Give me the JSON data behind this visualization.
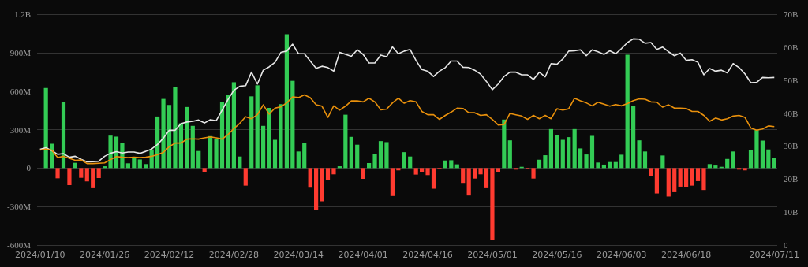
{
  "chart_data": {
    "type": "bar",
    "categories": [
      "2024/01/10",
      null,
      null,
      null,
      null,
      null,
      null,
      null,
      null,
      null,
      null,
      "2024/01/26",
      null,
      null,
      null,
      null,
      null,
      null,
      null,
      null,
      null,
      null,
      "2024/02/12",
      null,
      null,
      null,
      null,
      null,
      null,
      null,
      null,
      null,
      null,
      "2024/02/28",
      null,
      null,
      null,
      null,
      null,
      null,
      null,
      null,
      null,
      null,
      "2024/03/14",
      null,
      null,
      null,
      null,
      null,
      null,
      null,
      null,
      null,
      null,
      "2024/04/01",
      null,
      null,
      null,
      null,
      null,
      null,
      null,
      null,
      null,
      null,
      "2024/04/16",
      null,
      null,
      null,
      null,
      null,
      null,
      null,
      null,
      null,
      null,
      "2024/05/01",
      null,
      null,
      null,
      null,
      null,
      null,
      null,
      null,
      null,
      null,
      "2024/05/16",
      null,
      null,
      null,
      null,
      null,
      null,
      null,
      null,
      null,
      null,
      "2024/06/03",
      null,
      null,
      null,
      null,
      null,
      null,
      null,
      null,
      null,
      null,
      "2024/06/18",
      null,
      null,
      null,
      null,
      null,
      null,
      null,
      null,
      null,
      null,
      null,
      null,
      null,
      null,
      "2024/07/11"
    ],
    "series": [
      {
        "values": [
          null,
          624000000.0,
          190000000.0,
          -80000000.0,
          516000000.0,
          -133000000.0,
          41000000.0,
          -76000000.0,
          -104000000.0,
          -157000000.0,
          -78000000.0,
          14000000.0,
          253000000.0,
          245000000.0,
          196000000.0,
          37000000.0,
          80000000.0,
          67000000.0,
          31000000.0,
          145000000.0,
          402000000.0,
          539000000.0,
          492000000.0,
          629000000.0,
          349000000.0,
          476000000.0,
          329000000.0,
          133000000.0,
          -33000000.0,
          249000000.0,
          227000000.0,
          516000000.0,
          573000000.0,
          669000000.0,
          90000000.0,
          -137000000.0,
          559000000.0,
          645000000.0,
          329000000.0,
          469000000.0,
          220000000.0,
          498000000.0,
          1043000000.0,
          680000000.0,
          129000000.0,
          196000000.0,
          -153000000.0,
          -324000000.0,
          -259000000.0,
          -92000000.0,
          -49000000.0,
          14000000.0,
          416000000.0,
          243000000.0,
          182000000.0,
          -84000000.0,
          39000000.0,
          110000000.0,
          210000000.0,
          202000000.0,
          -218000000.0,
          -18000000.0,
          124000000.0,
          90000000.0,
          -51000000.0,
          -35000000.0,
          -55000000.0,
          -161000000.0,
          -4000000.0,
          59000000.0,
          61000000.0,
          29000000.0,
          -116000000.0,
          -214000000.0,
          -82000000.0,
          -49000000.0,
          -157000000.0,
          -563000000.0,
          -33000000.0,
          378000000.0,
          216000000.0,
          -12000000.0,
          10000000.0,
          -10000000.0,
          -82000000.0,
          65000000.0,
          100000000.0,
          304000000.0,
          255000000.0,
          220000000.0,
          241000000.0,
          304000000.0,
          153000000.0,
          106000000.0,
          251000000.0,
          43000000.0,
          27000000.0,
          47000000.0,
          47000000.0,
          104000000.0,
          884000000.0,
          486000000.0,
          216000000.0,
          129000000.0,
          -61000000.0,
          -198000000.0,
          98000000.0,
          -222000000.0,
          -188000000.0,
          -145000000.0,
          -151000000.0,
          -137000000.0,
          -102000000.0,
          -171000000.0,
          31000000.0,
          20000000.0,
          10000000.0,
          71000000.0,
          129000000.0,
          -12000000.0,
          -18000000.0,
          141000000.0,
          296000000.0,
          214000000.0,
          145000000.0,
          78000000.0
        ],
        "colors": [
          null,
          "#33cc55",
          "#33cc55",
          "#ff3b30",
          "#33cc55",
          "#ff3b30",
          "#33cc55",
          "#ff3b30",
          "#ff3b30",
          "#ff3b30",
          "#ff3b30",
          "#33cc55",
          "#33cc55",
          "#33cc55",
          "#33cc55",
          "#33cc55",
          "#33cc55",
          "#33cc55",
          "#33cc55",
          "#33cc55",
          "#33cc55",
          "#33cc55",
          "#33cc55",
          "#33cc55",
          "#33cc55",
          "#33cc55",
          "#33cc55",
          "#33cc55",
          "#ff3b30",
          "#33cc55",
          "#33cc55",
          "#33cc55",
          "#33cc55",
          "#33cc55",
          "#33cc55",
          "#ff3b30",
          "#33cc55",
          "#33cc55",
          "#33cc55",
          "#33cc55",
          "#33cc55",
          "#33cc55",
          "#33cc55",
          "#33cc55",
          "#33cc55",
          "#33cc55",
          "#ff3b30",
          "#ff3b30",
          "#ff3b30",
          "#ff3b30",
          "#ff3b30",
          "#33cc55",
          "#33cc55",
          "#33cc55",
          "#33cc55",
          "#ff3b30",
          "#33cc55",
          "#33cc55",
          "#33cc55",
          "#33cc55",
          "#ff3b30",
          "#ff3b30",
          "#33cc55",
          "#33cc55",
          "#ff3b30",
          "#ff3b30",
          "#ff3b30",
          "#ff3b30",
          "#ff3b30",
          "#33cc55",
          "#33cc55",
          "#33cc55",
          "#ff3b30",
          "#ff3b30",
          "#ff3b30",
          "#ff3b30",
          "#ff3b30",
          "#ff3b30",
          "#ff3b30",
          "#33cc55",
          "#33cc55",
          "#ff3b30",
          "#33cc55",
          "#ff3b30",
          "#ff3b30",
          "#33cc55",
          "#33cc55",
          "#33cc55",
          "#33cc55",
          "#33cc55",
          "#33cc55",
          "#33cc55",
          "#33cc55",
          "#33cc55",
          "#33cc55",
          "#33cc55",
          "#33cc55",
          "#33cc55",
          "#33cc55",
          "#33cc55",
          "#33cc55",
          "#33cc55",
          "#33cc55",
          "#33cc55",
          "#ff3b30",
          "#ff3b30",
          "#33cc55",
          "#ff3b30",
          "#ff3b30",
          "#ff3b30",
          "#ff3b30",
          "#ff3b30",
          "#ff3b30",
          "#ff3b30",
          "#33cc55",
          "#33cc55",
          "#33cc55",
          "#33cc55",
          "#33cc55",
          "#ff3b30",
          "#ff3b30",
          "#33cc55",
          "#33cc55",
          "#33cc55",
          "#33cc55",
          "#33cc55"
        ]
      },
      {
        "type": "line",
        "axis": "y2",
        "color": "#e6e6e6",
        "values": [
          29.0,
          29.5,
          28.6,
          27.5,
          27.7,
          26.6,
          26.9,
          26.0,
          25.2,
          25.3,
          25.4,
          26.9,
          27.8,
          28.3,
          27.9,
          28.2,
          28.2,
          27.8,
          28.4,
          29.1,
          30.5,
          32.4,
          34.8,
          34.8,
          36.8,
          37.3,
          37.5,
          37.9,
          37.0,
          38.0,
          37.7,
          40.9,
          44.1,
          46.9,
          48.1,
          48.3,
          52.4,
          48.8,
          53.0,
          54.0,
          55.4,
          58.4,
          58.8,
          60.9,
          58.0,
          58.0,
          55.8,
          53.6,
          54.2,
          53.8,
          52.7,
          58.4,
          57.8,
          57.2,
          59.2,
          57.8,
          55.2,
          55.2,
          57.6,
          57.1,
          60.1,
          58.0,
          58.8,
          59.3,
          56.0,
          53.2,
          52.7,
          51.1,
          52.7,
          53.8,
          55.8,
          55.8,
          53.9,
          53.8,
          53.0,
          51.8,
          49.6,
          47.1,
          48.8,
          51.1,
          52.4,
          52.4,
          51.6,
          51.6,
          50.2,
          52.4,
          51.0,
          55.0,
          54.8,
          56.4,
          58.8,
          58.9,
          59.2,
          57.4,
          59.2,
          58.6,
          57.8,
          58.9,
          58.0,
          59.6,
          61.4,
          62.5,
          62.4,
          61.2,
          61.4,
          59.3,
          60.0,
          58.6,
          57.4,
          58.2,
          56.0,
          56.2,
          55.4,
          51.6,
          53.5,
          52.7,
          53.0,
          52.2,
          55.0,
          53.8,
          51.9,
          49.2,
          49.3,
          50.8,
          50.7,
          50.8
        ]
      },
      {
        "type": "line",
        "axis": "y2",
        "color": "#e8900c",
        "values": [
          28.8,
          29.1,
          28.8,
          26.5,
          26.9,
          26.3,
          25.7,
          25.8,
          24.7,
          24.7,
          24.8,
          24.9,
          25.9,
          26.8,
          26.6,
          26.5,
          26.6,
          26.5,
          26.6,
          26.9,
          27.4,
          28.1,
          29.8,
          30.9,
          30.9,
          32.1,
          32.2,
          32.1,
          32.5,
          32.8,
          32.5,
          32.1,
          33.5,
          35.3,
          36.9,
          38.9,
          38.3,
          39.5,
          42.5,
          39.7,
          41.5,
          41.9,
          43.1,
          44.9,
          44.7,
          45.5,
          44.7,
          42.5,
          42.1,
          38.7,
          42.2,
          40.9,
          42.1,
          43.7,
          43.7,
          43.4,
          44.5,
          43.4,
          41.0,
          41.2,
          43.1,
          44.5,
          43.0,
          43.8,
          43.4,
          40.5,
          39.5,
          39.5,
          38.1,
          39.3,
          40.3,
          41.5,
          41.4,
          40.1,
          40.1,
          39.3,
          39.5,
          38.1,
          36.4,
          36.5,
          39.9,
          39.5,
          39.1,
          38.1,
          39.3,
          38.3,
          39.3,
          38.3,
          41.3,
          40.9,
          41.3,
          44.5,
          43.7,
          43.1,
          42.2,
          43.3,
          42.7,
          42.1,
          42.6,
          42.2,
          42.9,
          43.8,
          44.3,
          44.2,
          43.4,
          43.3,
          41.8,
          42.5,
          41.5,
          41.5,
          41.4,
          40.5,
          40.5,
          39.3,
          37.5,
          38.5,
          37.9,
          38.3,
          39.1,
          39.3,
          38.7,
          35.5,
          34.8,
          35.2,
          36.1,
          35.9
        ]
      }
    ],
    "ylim": [
      -600000000.0,
      1200000000.0
    ],
    "yticks": [
      {
        "value": -600000000.0,
        "label": "-600M"
      },
      {
        "value": -300000000.0,
        "label": "-300M"
      },
      0,
      {
        "value": 300000000.0,
        "label": "300M"
      },
      {
        "value": 600000000.0,
        "label": "600M"
      },
      {
        "value": 900000000.0,
        "label": "900M"
      },
      {
        "value": 1200000000.0,
        "label": "1.2B"
      }
    ],
    "y2lim": [
      0,
      70
    ],
    "y2ticks": [
      0,
      {
        "value": 10,
        "label": "10B"
      },
      {
        "value": 20,
        "label": "20B"
      },
      {
        "value": 30,
        "label": "30B"
      },
      {
        "value": 40,
        "label": "40B"
      },
      {
        "value": 50,
        "label": "50B"
      },
      {
        "value": 60,
        "label": "60B"
      },
      {
        "value": 70,
        "label": "70B"
      }
    ],
    "grid": "y",
    "marker": "none"
  }
}
